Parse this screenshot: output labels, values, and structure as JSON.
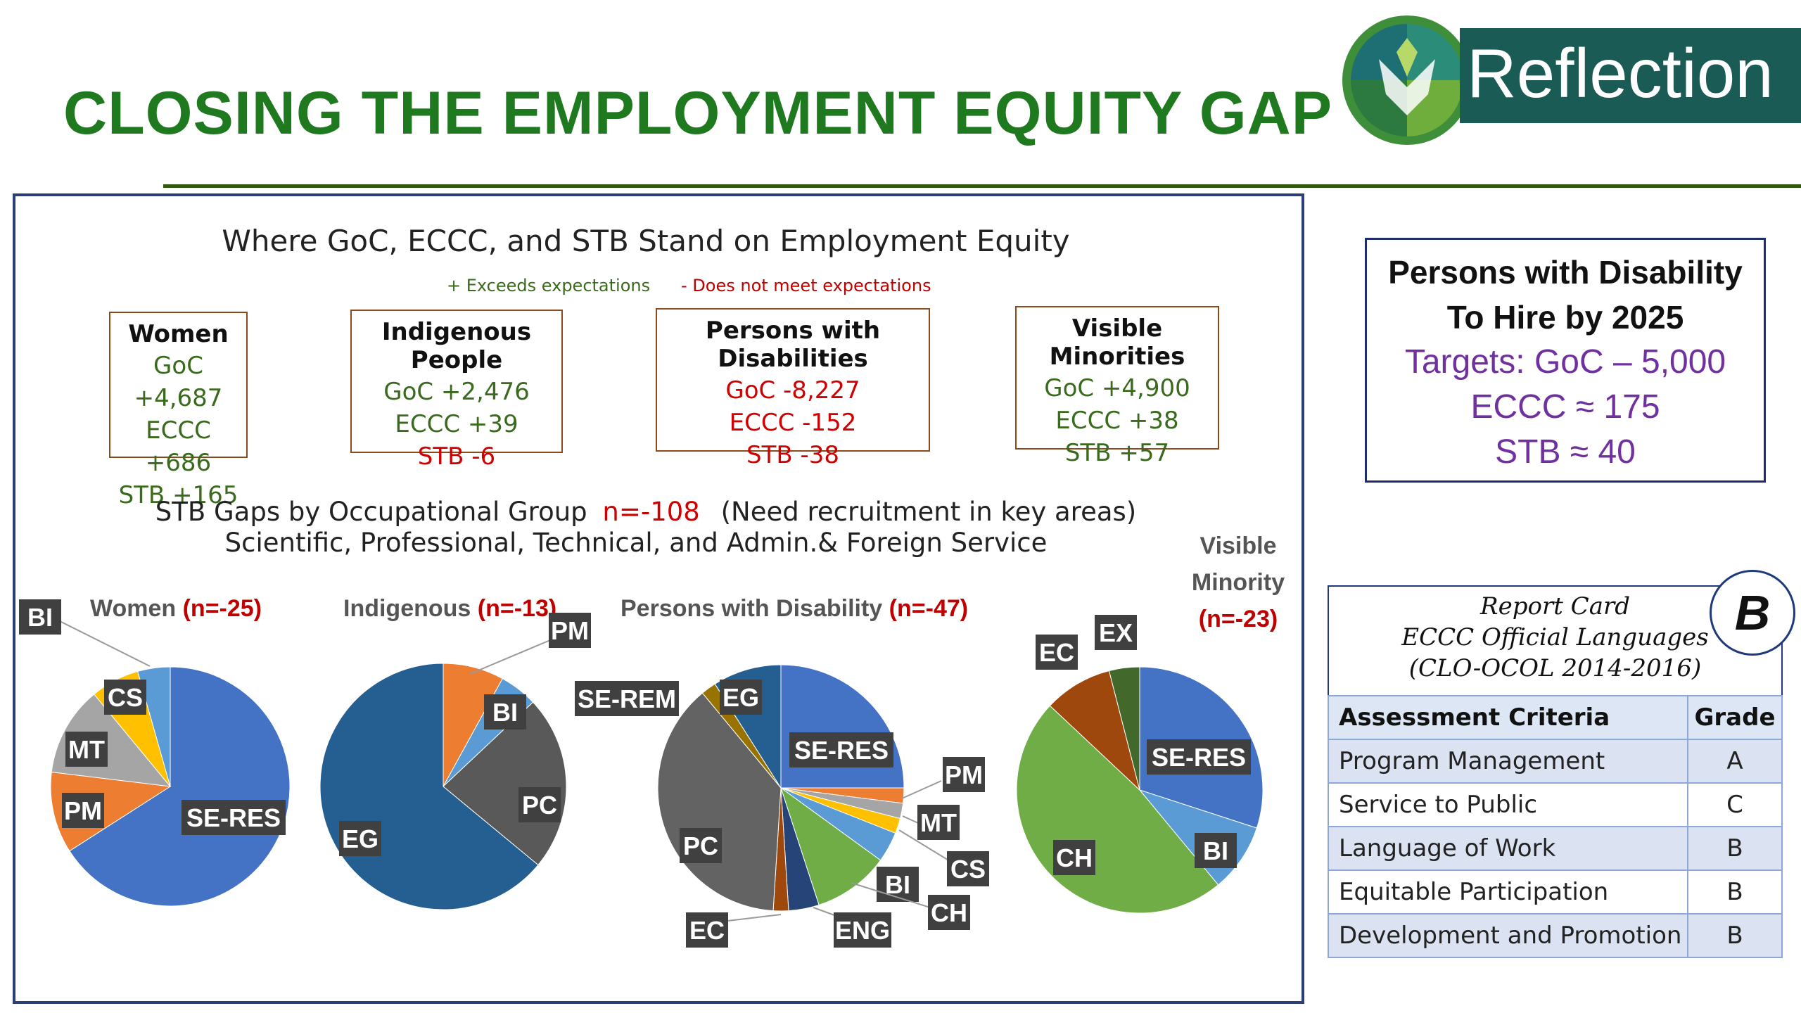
{
  "header": {
    "title": "CLOSING THE EMPLOYMENT EQUITY GAP",
    "logo_text": "Reflection"
  },
  "main": {
    "title": "Where GoC, ECCC, and STB Stand on Employment Equity",
    "legend_plus": "+  Exceeds expectations",
    "legend_minus": "-  Does not meet expectations",
    "cards": [
      {
        "heading": "Women",
        "rows": [
          {
            "text": "GoC +4,687",
            "status": "pos"
          },
          {
            "text": "ECCC  +686",
            "status": "pos"
          },
          {
            "text": "STB +165",
            "status": "pos"
          }
        ]
      },
      {
        "heading": "Indigenous People",
        "rows": [
          {
            "text": "GoC +2,476",
            "status": "pos"
          },
          {
            "text": "ECCC +39",
            "status": "pos"
          },
          {
            "text": "STB -6",
            "status": "neg"
          }
        ]
      },
      {
        "heading": "Persons with Disabilities",
        "rows": [
          {
            "text": "GoC -8,227",
            "status": "neg"
          },
          {
            "text": "ECCC  -152",
            "status": "neg"
          },
          {
            "text": "STB -38",
            "status": "neg"
          }
        ]
      },
      {
        "heading": "Visible Minorities",
        "rows": [
          {
            "text": "GoC +4,900",
            "status": "pos"
          },
          {
            "text": "ECCC +38",
            "status": "pos"
          },
          {
            "text": "STB +57",
            "status": "pos"
          }
        ]
      }
    ],
    "gaps_prefix": "STB Gaps by Occupational Group",
    "gaps_n": "n=-108",
    "gaps_suffix": "(Need recruitment in key areas)",
    "gaps_line2": "Scientific, Professional, Technical, and Admin.& Foreign Service"
  },
  "chart_data": [
    {
      "type": "pie",
      "title": "Women",
      "n_label": "(n=-25)",
      "slices": [
        {
          "label": "SE-RES",
          "value": 60,
          "color": "#4472c4"
        },
        {
          "label": "PM",
          "value": 10,
          "color": "#ed7d31"
        },
        {
          "label": "MT",
          "value": 11,
          "color": "#a5a5a5"
        },
        {
          "label": "CS",
          "value": 6,
          "color": "#ffc000"
        },
        {
          "label": "BI",
          "value": 4,
          "color": "#5b9bd5"
        }
      ]
    },
    {
      "type": "pie",
      "title": "Indigenous",
      "n_label": "(n=-13)",
      "slices": [
        {
          "label": "PM",
          "value": 8,
          "color": "#ed7d31"
        },
        {
          "label": "BI",
          "value": 5,
          "color": "#5b9bd5"
        },
        {
          "label": "PC",
          "value": 23,
          "color": "#595959"
        },
        {
          "label": "EG",
          "value": 64,
          "color": "#255e91"
        }
      ]
    },
    {
      "type": "pie",
      "title": "Persons with Disability",
      "n_label": "(n=-47)",
      "slices": [
        {
          "label": "SE-RES",
          "value": 25,
          "color": "#4472c4"
        },
        {
          "label": "PM",
          "value": 2,
          "color": "#ed7d31"
        },
        {
          "label": "MT",
          "value": 2,
          "color": "#a5a5a5"
        },
        {
          "label": "CS",
          "value": 2,
          "color": "#ffc000"
        },
        {
          "label": "BI",
          "value": 4,
          "color": "#5b9bd5"
        },
        {
          "label": "CH",
          "value": 10,
          "color": "#70ad47"
        },
        {
          "label": "ENG",
          "value": 4,
          "color": "#264478"
        },
        {
          "label": "EC",
          "value": 2,
          "color": "#9e480e"
        },
        {
          "label": "PC",
          "value": 38,
          "color": "#636363"
        },
        {
          "label": "SE-REM",
          "value": 2,
          "color": "#997300"
        },
        {
          "label": "EG",
          "value": 9,
          "color": "#255e91"
        }
      ]
    },
    {
      "type": "pie",
      "title": "Visible Minority",
      "n_label": "(n=-23)",
      "slices": [
        {
          "label": "SE-RES",
          "value": 30,
          "color": "#4472c4"
        },
        {
          "label": "BI",
          "value": 9,
          "color": "#5b9bd5"
        },
        {
          "label": "CH",
          "value": 48,
          "color": "#70ad47"
        },
        {
          "label": "EC",
          "value": 9,
          "color": "#9e480e"
        },
        {
          "label": "EX",
          "value": 4,
          "color": "#43682b"
        }
      ]
    }
  ],
  "disability_box": {
    "line1": "Persons with Disability",
    "line2": "To Hire by 2025",
    "line3": "Targets: GoC – 5,000",
    "line4": "ECCC ≈ 175",
    "line5": "STB ≈ 40"
  },
  "report_card": {
    "line1": "Report Card",
    "line2": "ECCC Official Languages",
    "line3": "(CLO-OCOL 2014-2016)",
    "overall_grade": "B",
    "header": [
      "Assessment Criteria",
      "Grade"
    ],
    "rows": [
      [
        "Program Management",
        "A"
      ],
      [
        "Service to Public",
        "C"
      ],
      [
        "Language of Work",
        "B"
      ],
      [
        "Equitable Participation",
        "B"
      ],
      [
        "Development and Promotion",
        "B"
      ]
    ]
  }
}
